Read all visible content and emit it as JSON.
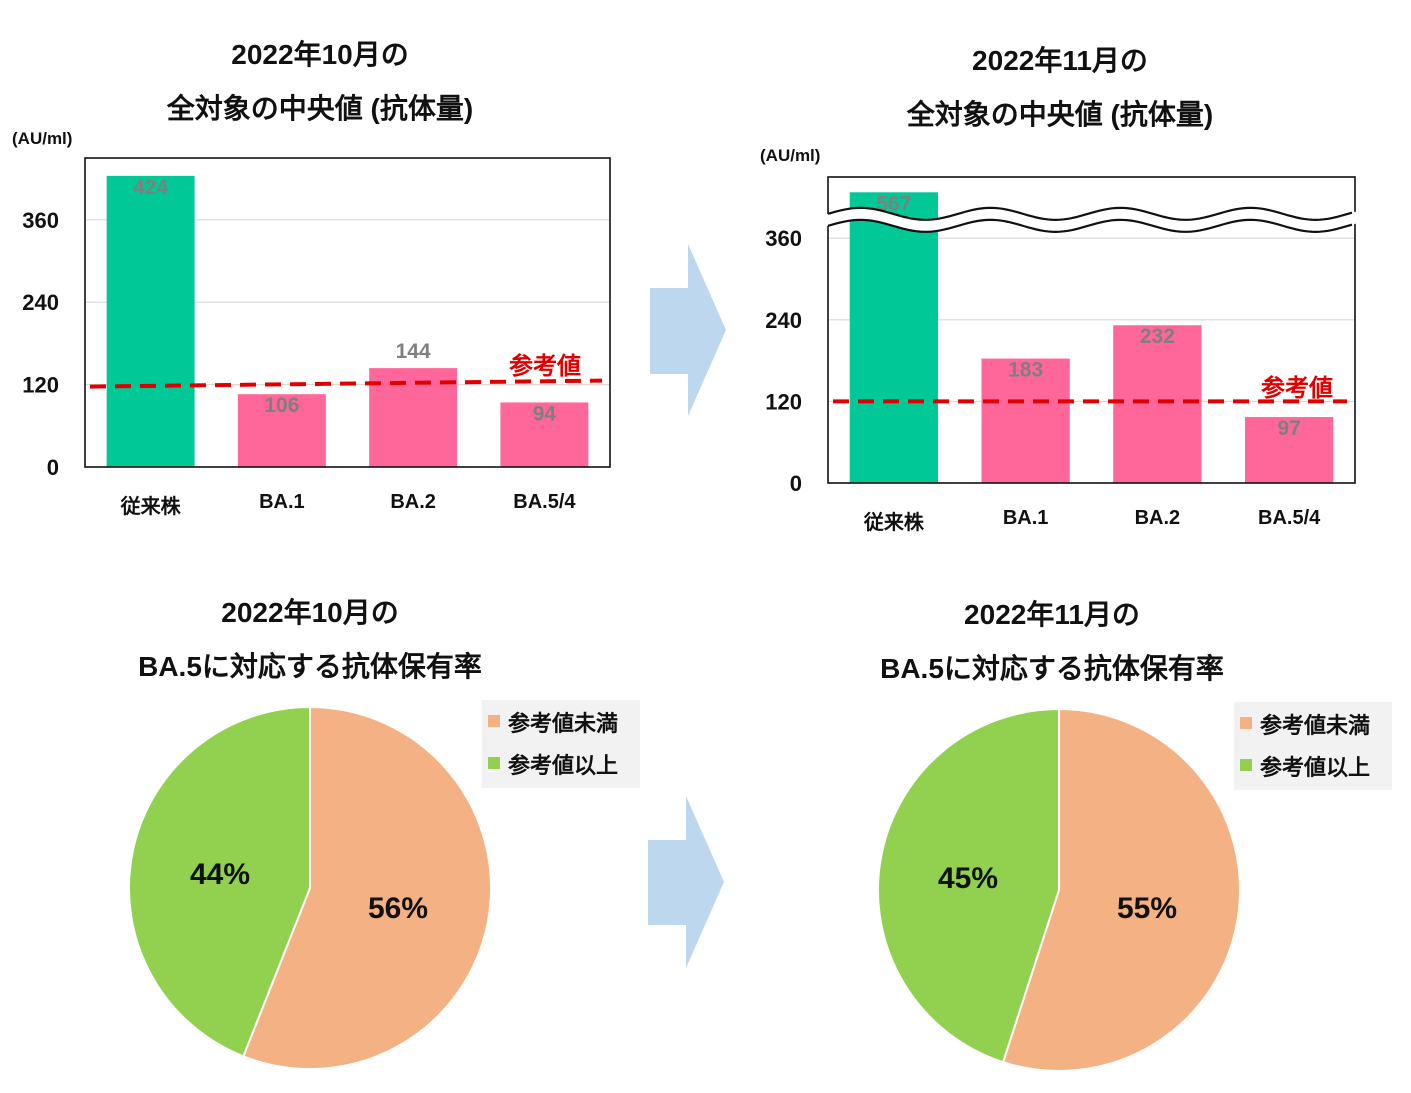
{
  "colors": {
    "conventional": "#00C896",
    "omicron": "#FF6699",
    "reference_line": "#E00000",
    "below": "#F4B183",
    "above": "#92D050",
    "arrow": "#BDD7EE",
    "value_label": "#7F7F7F"
  },
  "chart_data": [
    {
      "type": "bar",
      "title_line1": "2022年10月の",
      "title_line2": "全対象の中央値 (抗体量)",
      "unit": "(AU/ml)",
      "categories": [
        "従来株",
        "BA.1",
        "BA.2",
        "BA.5/4"
      ],
      "values": [
        424,
        106,
        144,
        94
      ],
      "value_labels": [
        "424",
        "106",
        "144",
        "94"
      ],
      "yticks": [
        "0",
        "120",
        "240",
        "360"
      ],
      "ylim": [
        0,
        450
      ],
      "reference_value": 120,
      "reference_label": "参考値",
      "axis_break": false,
      "legend_position": "none"
    },
    {
      "type": "bar",
      "title_line1": "2022年11月の",
      "title_line2": "全対象の中央値 (抗体量)",
      "unit": "(AU/ml)",
      "categories": [
        "従来株",
        "BA.1",
        "BA.2",
        "BA.5/4"
      ],
      "values": [
        567,
        183,
        232,
        97
      ],
      "value_labels": [
        "567",
        "183",
        "232",
        "97"
      ],
      "yticks": [
        "0",
        "120",
        "240",
        "360"
      ],
      "ylim": [
        0,
        450
      ],
      "reference_value": 120,
      "reference_label": "参考値",
      "axis_break": true,
      "legend_position": "none"
    },
    {
      "type": "pie",
      "title_line1": "2022年10月の",
      "title_line2": "BA.5に対応する抗体保有率",
      "categories": [
        "参考値未満",
        "参考値以上"
      ],
      "values": [
        56,
        44
      ],
      "value_labels": [
        "56%",
        "44%"
      ],
      "legend_position": "top-right"
    },
    {
      "type": "pie",
      "title_line1": "2022年11月の",
      "title_line2": "BA.5に対応する抗体保有率",
      "categories": [
        "参考値未満",
        "参考値以上"
      ],
      "values": [
        55,
        45
      ],
      "value_labels": [
        "55%",
        "45%"
      ],
      "legend_position": "top-right"
    }
  ]
}
